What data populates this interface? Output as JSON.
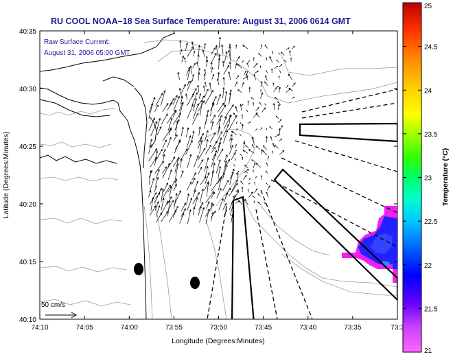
{
  "title": "RU COOL  NOAA–18  Sea Surface Temperature:  August 31, 2006 0614 GMT",
  "annotation": {
    "line1": "Raw Surface Current:",
    "line2": "August 31, 2006 05:00 GMT"
  },
  "scale_label": "50 cm/s",
  "axes": {
    "xlabel": "Longitude (Degrees:Minutes)",
    "ylabel": "Latitude (Degrees:Minutes)",
    "x_ticks": [
      "74:10",
      "74:05",
      "74:00",
      "73:55",
      "73:50",
      "73:45",
      "73:40",
      "73:35",
      "73:3"
    ],
    "y_ticks": [
      "40:35",
      "40:30",
      "40:25",
      "40:20",
      "40:15",
      "40:10"
    ]
  },
  "colorbar": {
    "label": "Temperature (°C)",
    "ticks": [
      "25",
      "24.5",
      "24",
      "23.5",
      "23",
      "22.5",
      "22",
      "21.5",
      "21"
    ],
    "min": 21,
    "max": 25
  },
  "colors": {
    "title": "#1a1a99",
    "annotation": "#1a1a99",
    "contour": "#999999",
    "coast": "#000000"
  }
}
